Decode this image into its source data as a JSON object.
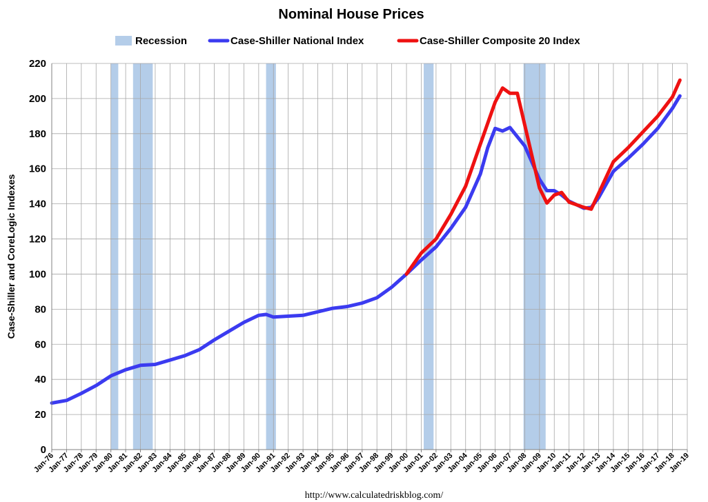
{
  "chart_data": {
    "type": "line",
    "title": "Nominal House Prices",
    "ylabel": "Case-Shiller and CoreLogic Indexes",
    "xlabel": "",
    "ylim": [
      0,
      220
    ],
    "yticks": [
      0,
      20,
      40,
      60,
      80,
      100,
      120,
      140,
      160,
      180,
      200,
      220
    ],
    "xlim": [
      "Jan-76",
      "Jan-19"
    ],
    "x_tick_labels": [
      "Jan-76",
      "Jan-77",
      "Jan-78",
      "Jan-79",
      "Jan-80",
      "Jan-81",
      "Jan-82",
      "Jan-83",
      "Jan-84",
      "Jan-85",
      "Jan-86",
      "Jan-87",
      "Jan-88",
      "Jan-89",
      "Jan-90",
      "Jan-91",
      "Jan-92",
      "Jan-93",
      "Jan-94",
      "Jan-95",
      "Jan-96",
      "Jan-97",
      "Jan-98",
      "Jan-99",
      "Jan-00",
      "Jan-01",
      "Jan-02",
      "Jan-03",
      "Jan-04",
      "Jan-05",
      "Jan-06",
      "Jan-07",
      "Jan-08",
      "Jan-09",
      "Jan-10",
      "Jan-11",
      "Jan-12",
      "Jan-13",
      "Jan-14",
      "Jan-15",
      "Jan-16",
      "Jan-17",
      "Jan-18",
      "Jan-19"
    ],
    "grid": true,
    "legend_position": "top",
    "recessions": {
      "name": "Recession",
      "color": "#b4cde9",
      "periods": [
        {
          "start": "Jan-80",
          "end": "Jul-80"
        },
        {
          "start": "Jul-81",
          "end": "Nov-82"
        },
        {
          "start": "Jul-90",
          "end": "Mar-91"
        },
        {
          "start": "Mar-01",
          "end": "Nov-01"
        },
        {
          "start": "Dec-07",
          "end": "Jun-09"
        }
      ]
    },
    "series": [
      {
        "name": "Case-Shiller National Index",
        "color": "#3b3bf0",
        "points": [
          [
            "Jan-76",
            26.5
          ],
          [
            "Jan-77",
            28
          ],
          [
            "Jan-78",
            32
          ],
          [
            "Jan-79",
            36.5
          ],
          [
            "Jan-80",
            42
          ],
          [
            "Jan-81",
            45.5
          ],
          [
            "Jan-82",
            48
          ],
          [
            "Jan-83",
            48.5
          ],
          [
            "Jan-84",
            51
          ],
          [
            "Jan-85",
            53.5
          ],
          [
            "Jan-86",
            57
          ],
          [
            "Jan-87",
            62.5
          ],
          [
            "Jan-88",
            67.5
          ],
          [
            "Jan-89",
            72.5
          ],
          [
            "Jan-90",
            76.5
          ],
          [
            "Jul-90",
            77
          ],
          [
            "Jan-91",
            75.5
          ],
          [
            "Jan-92",
            76
          ],
          [
            "Jan-93",
            76.5
          ],
          [
            "Jan-94",
            78.5
          ],
          [
            "Jan-95",
            80.5
          ],
          [
            "Jan-96",
            81.5
          ],
          [
            "Jan-97",
            83.5
          ],
          [
            "Jan-98",
            86.5
          ],
          [
            "Jan-99",
            92.5
          ],
          [
            "Jan-00",
            100
          ],
          [
            "Jan-01",
            108
          ],
          [
            "Jan-02",
            115.5
          ],
          [
            "Jan-03",
            126
          ],
          [
            "Jan-04",
            138
          ],
          [
            "Jan-05",
            157
          ],
          [
            "Jul-05",
            172
          ],
          [
            "Jan-06",
            183
          ],
          [
            "Jul-06",
            181.5
          ],
          [
            "Jan-07",
            183.5
          ],
          [
            "Jan-08",
            173
          ],
          [
            "Jan-09",
            154
          ],
          [
            "Jul-09",
            147.5
          ],
          [
            "Jan-10",
            147.5
          ],
          [
            "Jul-10",
            145
          ],
          [
            "Jan-11",
            141.5
          ],
          [
            "Jan-12",
            137.5
          ],
          [
            "Jul-12",
            138
          ],
          [
            "Jan-13",
            143.5
          ],
          [
            "Jan-14",
            158.5
          ],
          [
            "Jan-15",
            166
          ],
          [
            "Jan-16",
            174
          ],
          [
            "Jan-17",
            183
          ],
          [
            "Jan-18",
            194.5
          ],
          [
            "Jul-18",
            201.5
          ]
        ]
      },
      {
        "name": "Case-Shiller Composite 20 Index",
        "color": "#ee1111",
        "points": [
          [
            "Jan-00",
            100
          ],
          [
            "Jan-01",
            112
          ],
          [
            "Jan-02",
            120
          ],
          [
            "Jan-03",
            134
          ],
          [
            "Jan-04",
            150
          ],
          [
            "Jan-05",
            174
          ],
          [
            "Jan-06",
            198
          ],
          [
            "Jul-06",
            206
          ],
          [
            "Jan-07",
            203
          ],
          [
            "Jul-07",
            203
          ],
          [
            "Jan-08",
            185
          ],
          [
            "Jul-08",
            167
          ],
          [
            "Jan-09",
            149
          ],
          [
            "Jul-09",
            140.5
          ],
          [
            "Jan-10",
            145
          ],
          [
            "Jul-10",
            146.5
          ],
          [
            "Jan-11",
            141
          ],
          [
            "Jan-12",
            138
          ],
          [
            "Jul-12",
            137
          ],
          [
            "Jan-13",
            146
          ],
          [
            "Jan-14",
            164
          ],
          [
            "Jan-15",
            172
          ],
          [
            "Jan-16",
            181
          ],
          [
            "Jan-17",
            190
          ],
          [
            "Jan-18",
            201
          ],
          [
            "Jul-18",
            210.5
          ]
        ]
      }
    ]
  },
  "source_text": "http://www.calculatedriskblog.com/"
}
